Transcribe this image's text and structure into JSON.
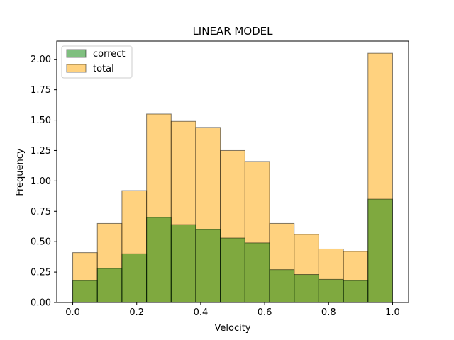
{
  "chart_data": {
    "type": "bar",
    "title": "LINEAR MODEL",
    "xlabel": "Velocity",
    "ylabel": "Frequency",
    "xlim": [
      -0.05,
      1.05
    ],
    "ylim": [
      0,
      2.15
    ],
    "x_ticks": [
      0.0,
      0.2,
      0.4,
      0.6,
      0.8,
      1.0
    ],
    "x_tick_labels": [
      "0.0",
      "0.2",
      "0.4",
      "0.6",
      "0.8",
      "1.0"
    ],
    "y_ticks": [
      0,
      0.25,
      0.5,
      0.75,
      1.0,
      1.25,
      1.5,
      1.75,
      2.0
    ],
    "y_tick_labels": [
      "0.00",
      "0.25",
      "0.50",
      "0.75",
      "1.00",
      "1.25",
      "1.50",
      "1.75",
      "2.00"
    ],
    "bin_edges": [
      0.0,
      0.0769,
      0.1538,
      0.2308,
      0.3077,
      0.3846,
      0.4615,
      0.5385,
      0.6154,
      0.6923,
      0.7692,
      0.8462,
      0.9231,
      1.0
    ],
    "series": [
      {
        "name": "total",
        "color": "#ffa500",
        "values": [
          0.41,
          0.65,
          0.92,
          1.55,
          1.49,
          1.44,
          1.25,
          1.16,
          0.65,
          0.56,
          0.44,
          0.42,
          2.05
        ]
      },
      {
        "name": "correct",
        "color": "#008000",
        "values": [
          0.18,
          0.28,
          0.4,
          0.7,
          0.64,
          0.6,
          0.53,
          0.49,
          0.27,
          0.23,
          0.19,
          0.18,
          0.85
        ]
      }
    ],
    "legend": {
      "position": "top-left",
      "entries": [
        {
          "label": "correct",
          "color": "#008000"
        },
        {
          "label": "total",
          "color": "#ffa500"
        }
      ]
    },
    "grid": false
  }
}
